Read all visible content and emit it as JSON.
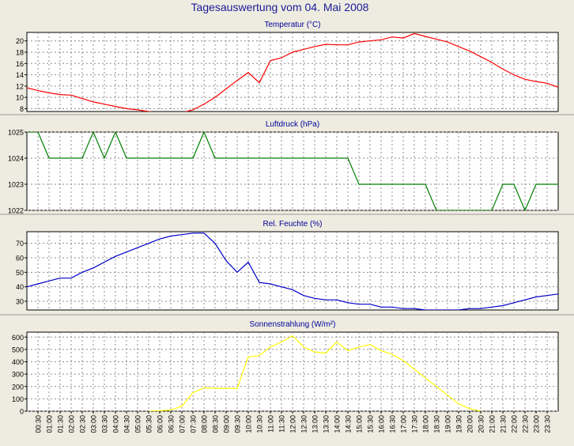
{
  "page_title": "Tagesauswertung vom 04. Mai 2008",
  "colors": {
    "background": "#eeece0",
    "plot_background": "#ffffff",
    "title": "#1a1a99",
    "panel_title": "#000099",
    "grid": "#8c8c8c",
    "separator": "#9a9a9a"
  },
  "x_tick_labels": [
    "00:30",
    "01:00",
    "01:30",
    "02:00",
    "02:30",
    "03:00",
    "03:30",
    "04:00",
    "04:30",
    "05:00",
    "05:30",
    "06:00",
    "06:30",
    "07:00",
    "07:30",
    "08:00",
    "08:30",
    "09:00",
    "09:30",
    "10:00",
    "10:30",
    "11:00",
    "11:30",
    "12:00",
    "12:30",
    "13:00",
    "13:30",
    "14:00",
    "14:30",
    "15:00",
    "15:30",
    "16:00",
    "16:30",
    "17:00",
    "17:30",
    "18:00",
    "18:30",
    "19:00",
    "19:30",
    "20:00",
    "20:30",
    "21:00",
    "21:30",
    "22:00",
    "22:30",
    "23:00",
    "23:30"
  ],
  "chart_data": [
    {
      "type": "line",
      "title": "Temperatur (°C)",
      "color": "#ff0000",
      "ylim": [
        7.5,
        21.5
      ],
      "yticks": [
        8,
        10,
        12,
        14,
        16,
        18,
        20
      ],
      "grid": true,
      "x": [
        "00:00",
        "00:30",
        "01:00",
        "01:30",
        "02:00",
        "02:30",
        "03:00",
        "03:30",
        "04:00",
        "04:30",
        "05:00",
        "05:30",
        "06:00",
        "06:30",
        "07:00",
        "07:30",
        "08:00",
        "08:30",
        "09:00",
        "09:30",
        "10:00",
        "10:30",
        "11:00",
        "11:30",
        "12:00",
        "12:30",
        "13:00",
        "13:30",
        "14:00",
        "14:30",
        "15:00",
        "15:30",
        "16:00",
        "16:30",
        "17:00",
        "17:30",
        "18:00",
        "18:30",
        "19:00",
        "19:30",
        "20:00",
        "20:30",
        "21:00",
        "21:30",
        "22:00",
        "22:30",
        "23:00",
        "23:30",
        "24:00"
      ],
      "values": [
        11.7,
        11.2,
        10.8,
        10.5,
        10.4,
        9.8,
        9.2,
        8.8,
        8.4,
        8.0,
        7.8,
        7.5,
        7.3,
        7.2,
        7.3,
        7.8,
        8.8,
        10.0,
        11.5,
        13.0,
        14.4,
        12.6,
        16.5,
        17.0,
        18.0,
        18.5,
        19.0,
        19.4,
        19.3,
        19.3,
        19.8,
        20.0,
        20.2,
        20.7,
        20.5,
        21.3,
        20.8,
        20.3,
        19.8,
        19.0,
        18.2,
        17.2,
        16.2,
        15.0,
        14.0,
        13.2,
        12.8,
        12.5,
        11.8
      ]
    },
    {
      "type": "line",
      "title": "Luftdruck (hPa)",
      "color": "#008000",
      "ylim": [
        1022,
        1025
      ],
      "yticks": [
        1022,
        1023,
        1024,
        1025
      ],
      "grid": true,
      "x": [
        "00:00",
        "00:30",
        "01:00",
        "01:30",
        "02:00",
        "02:30",
        "03:00",
        "03:30",
        "04:00",
        "04:30",
        "05:00",
        "05:30",
        "06:00",
        "06:30",
        "07:00",
        "07:30",
        "08:00",
        "08:30",
        "09:00",
        "09:30",
        "10:00",
        "10:30",
        "11:00",
        "11:30",
        "12:00",
        "12:30",
        "13:00",
        "13:30",
        "14:00",
        "14:30",
        "15:00",
        "15:30",
        "16:00",
        "16:30",
        "17:00",
        "17:30",
        "18:00",
        "18:30",
        "19:00",
        "19:30",
        "20:00",
        "20:30",
        "21:00",
        "21:30",
        "22:00",
        "22:30",
        "23:00",
        "23:30",
        "24:00"
      ],
      "values": [
        1025,
        1025,
        1024,
        1024,
        1024,
        1024,
        1025,
        1024,
        1025,
        1024,
        1024,
        1024,
        1024,
        1024,
        1024,
        1024,
        1025,
        1024,
        1024,
        1024,
        1024,
        1024,
        1024,
        1024,
        1024,
        1024,
        1024,
        1024,
        1024,
        1024,
        1023,
        1023,
        1023,
        1023,
        1023,
        1023,
        1023,
        1022,
        1022,
        1022,
        1022,
        1022,
        1022,
        1023,
        1023,
        1022,
        1023,
        1023,
        1023
      ]
    },
    {
      "type": "line",
      "title": "Rel. Feuchte (%)",
      "color": "#0000cc",
      "ylim": [
        24,
        78
      ],
      "yticks": [
        30,
        40,
        50,
        60,
        70
      ],
      "grid": true,
      "x": [
        "00:00",
        "00:30",
        "01:00",
        "01:30",
        "02:00",
        "02:30",
        "03:00",
        "03:30",
        "04:00",
        "04:30",
        "05:00",
        "05:30",
        "06:00",
        "06:30",
        "07:00",
        "07:30",
        "08:00",
        "08:30",
        "09:00",
        "09:30",
        "10:00",
        "10:30",
        "11:00",
        "11:30",
        "12:00",
        "12:30",
        "13:00",
        "13:30",
        "14:00",
        "14:30",
        "15:00",
        "15:30",
        "16:00",
        "16:30",
        "17:00",
        "17:30",
        "18:00",
        "18:30",
        "19:00",
        "19:30",
        "20:00",
        "20:30",
        "21:00",
        "21:30",
        "22:00",
        "22:30",
        "23:00",
        "23:30",
        "24:00"
      ],
      "values": [
        40,
        42,
        44,
        46,
        46,
        50,
        53,
        57,
        61,
        64,
        67,
        70,
        73,
        75,
        76,
        77,
        77,
        70,
        58,
        50,
        57,
        43,
        42,
        40,
        38,
        34,
        32,
        31,
        31,
        29,
        28,
        28,
        26,
        26,
        25,
        25,
        24,
        24,
        24,
        24,
        25,
        25,
        26,
        27,
        29,
        31,
        33,
        34,
        35
      ]
    },
    {
      "type": "line",
      "title": "Sonnenstrahlung (W/m²)",
      "color": "#ffff00",
      "ylim": [
        0,
        640
      ],
      "yticks": [
        0,
        100,
        200,
        300,
        400,
        500,
        600
      ],
      "grid": true,
      "x": [
        "05:30",
        "06:00",
        "06:30",
        "07:00",
        "07:30",
        "08:00",
        "08:30",
        "09:00",
        "09:30",
        "10:00",
        "10:30",
        "11:00",
        "11:30",
        "12:00",
        "12:30",
        "13:00",
        "13:30",
        "14:00",
        "14:30",
        "15:00",
        "15:30",
        "16:00",
        "16:30",
        "17:00",
        "17:30",
        "18:00",
        "18:30",
        "19:00",
        "19:30",
        "20:00",
        "20:30"
      ],
      "values": [
        0,
        3,
        10,
        40,
        150,
        190,
        185,
        185,
        185,
        440,
        450,
        520,
        560,
        610,
        520,
        480,
        470,
        560,
        490,
        520,
        540,
        490,
        460,
        410,
        340,
        270,
        200,
        130,
        60,
        20,
        0
      ]
    }
  ]
}
